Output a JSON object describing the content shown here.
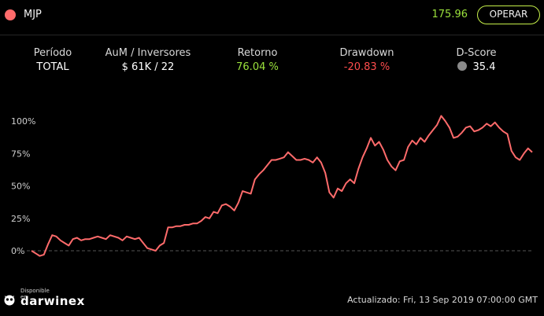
{
  "header": {
    "symbol": "MJP",
    "price": "175.96",
    "action_label": "OPERAR"
  },
  "stats": [
    {
      "label": "Período",
      "value": "TOTAL",
      "tone": "white"
    },
    {
      "label": "AuM / Inversores",
      "value": "$ 61K / 22",
      "tone": "white"
    },
    {
      "label": "Retorno",
      "value": "76.04 %",
      "tone": "green"
    },
    {
      "label": "Drawdown",
      "value": "-20.83 %",
      "tone": "red"
    },
    {
      "label": "D-Score",
      "value": "35.4",
      "tone": "white",
      "icon": "gear-shield-icon"
    }
  ],
  "chart_data": {
    "type": "line",
    "y_ticks": [
      "100%",
      "75%",
      "50%",
      "25%",
      "0%"
    ],
    "ylim": [
      0,
      100
    ],
    "series": [
      {
        "color": "#ff6b6b",
        "values": [
          0,
          -2,
          -4,
          -3,
          5,
          12,
          11,
          8,
          6,
          4,
          9,
          10,
          8,
          9,
          9,
          10,
          11,
          10,
          9,
          12,
          11,
          10,
          8,
          11,
          10,
          9,
          10,
          6,
          2,
          1,
          0,
          4,
          6,
          18,
          18,
          19,
          19,
          20,
          20,
          21,
          21,
          23,
          26,
          25,
          30,
          29,
          35,
          36,
          34,
          31,
          37,
          46,
          45,
          44,
          55,
          59,
          62,
          66,
          70,
          70,
          71,
          72,
          76,
          73,
          70,
          70,
          71,
          70,
          68,
          72,
          68,
          60,
          45,
          41,
          48,
          46,
          52,
          55,
          52,
          63,
          72,
          79,
          87,
          81,
          84,
          78,
          70,
          65,
          62,
          69,
          70,
          80,
          85,
          82,
          87,
          84,
          89,
          93,
          97,
          104,
          100,
          95,
          87,
          88,
          91,
          95,
          96,
          92,
          93,
          95,
          98,
          96,
          99,
          95,
          92,
          90,
          77,
          72,
          70,
          75,
          79,
          76
        ]
      }
    ]
  },
  "footer": {
    "logo_sub": "Disponible en",
    "logo_main": "darwinex",
    "updated": "Actualizado: Fri, 13 Sep 2019 07:00:00 GMT"
  }
}
